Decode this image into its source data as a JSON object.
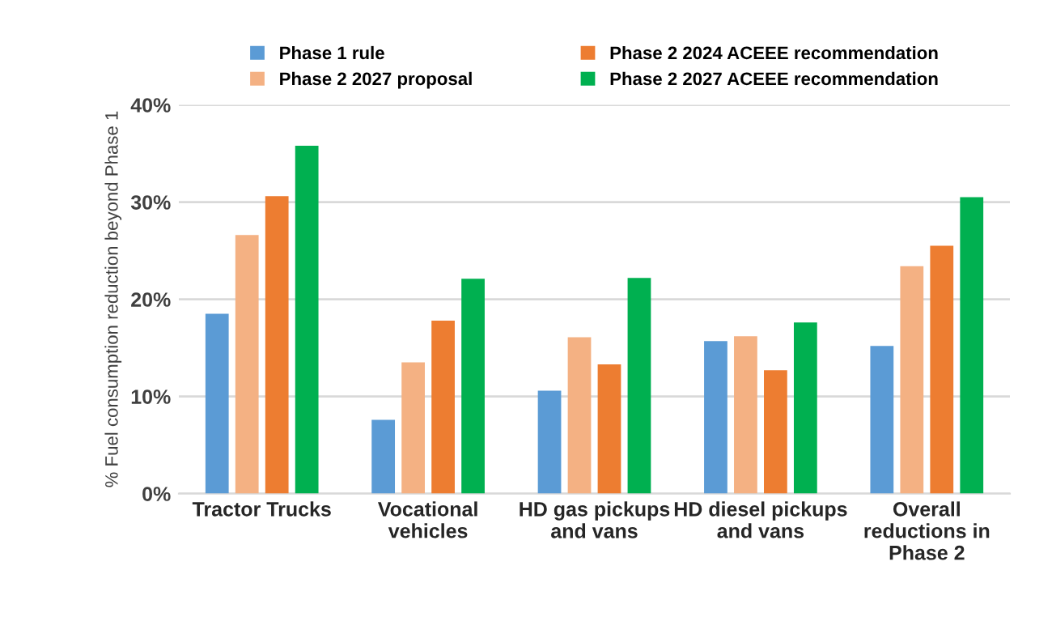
{
  "chart_data": {
    "type": "bar",
    "ylabel": "% Fuel consumption reduction beyond Phase 1",
    "categories": [
      "Tractor Trucks",
      "Vocational\nvehicles",
      "HD gas pickups\nand vans",
      "HD diesel pickups\nand vans",
      "Overall\nreductions in\nPhase 2"
    ],
    "series": [
      {
        "name": "Phase 1 rule",
        "color": "#5b9bd5",
        "values": [
          18.5,
          7.6,
          10.6,
          15.7,
          15.2
        ]
      },
      {
        "name": "Phase 2 2027 proposal",
        "color": "#f4b183",
        "values": [
          26.6,
          13.5,
          16.1,
          16.2,
          23.4
        ]
      },
      {
        "name": "Phase 2 2024 ACEEE recommendation",
        "color": "#ed7d31",
        "values": [
          30.6,
          17.8,
          13.3,
          12.7,
          25.5
        ]
      },
      {
        "name": "Phase 2 2027 ACEEE recommendation",
        "color": "#00b050",
        "values": [
          35.8,
          22.1,
          22.2,
          17.6,
          30.5
        ]
      }
    ],
    "ylim": [
      0,
      40
    ],
    "yticks": [
      {
        "value": 0,
        "label": "0%"
      },
      {
        "value": 10,
        "label": "10%"
      },
      {
        "value": 20,
        "label": "20%"
      },
      {
        "value": 30,
        "label": "30%"
      },
      {
        "value": 40,
        "label": "40%"
      }
    ],
    "grid": "y",
    "legend": "top"
  }
}
